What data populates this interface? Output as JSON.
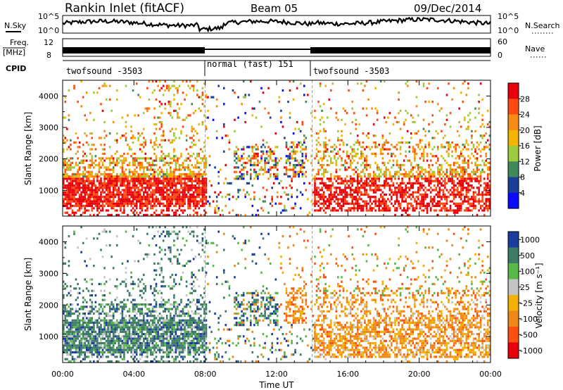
{
  "header": {
    "title": "Rankin Inlet (fitACF)",
    "beam": "Beam 05",
    "date": "09/Dec/2014"
  },
  "strips": {
    "nsky_label": "N.Sky",
    "nsearch_label": "N.Search",
    "nsky_ticks": [
      "10^5",
      "10^0"
    ],
    "nsearch_ticks": [
      "10^5",
      "10^0"
    ],
    "freq_label_1": "Freq.",
    "freq_label_2": "[MHz]",
    "freq_ticks": [
      "12",
      "8"
    ],
    "nave_label": "Nave",
    "nave_ticks": [
      "60",
      "0"
    ],
    "cpid_label": "CPID",
    "cpid_segments": [
      {
        "label": "twofsound -3503",
        "start": 0,
        "end": 8
      },
      {
        "label": "normal (fast) 151",
        "start": 8,
        "end": 14
      },
      {
        "label": "twofsound -3503",
        "start": 14,
        "end": 24
      }
    ]
  },
  "chart_data": [
    {
      "type": "heatmap",
      "panel": "power",
      "ylabel": "Slant Range [km]",
      "yticks": [
        "1000",
        "2000",
        "3000",
        "4000"
      ],
      "ylim": [
        180,
        4500
      ],
      "xlim": [
        0,
        24
      ],
      "colorbar": {
        "label": "Power [dB]",
        "ticks": [
          "28",
          "24",
          "20",
          "16",
          "12",
          "8",
          "4"
        ],
        "colors": [
          "#e8000b",
          "#ff4a10",
          "#f98a12",
          "#f5b400",
          "#9ecb3c",
          "#3f8a5a",
          "#1c3f9a",
          "#0a0aff"
        ]
      }
    },
    {
      "type": "heatmap",
      "panel": "velocity",
      "ylabel": "Slant Range [km]",
      "yticks": [
        "1000",
        "2000",
        "3000",
        "4000"
      ],
      "ylim": [
        180,
        4500
      ],
      "xlim": [
        0,
        24
      ],
      "xlabel": "Time UT",
      "xticks": [
        "00:00",
        "04:00",
        "08:00",
        "12:00",
        "16:00",
        "20:00",
        "00:00"
      ],
      "colorbar": {
        "label": "Velocity [m s⁻¹]",
        "ticks": [
          "1000",
          "500",
          "100",
          "25",
          "-25",
          "-100",
          "-500",
          "-1000"
        ],
        "colors": [
          "#1a3c9e",
          "#3d7a68",
          "#58b848",
          "#c4c4c4",
          "#f3b000",
          "#f08818",
          "#ff5010",
          "#e8000b"
        ]
      }
    }
  ]
}
